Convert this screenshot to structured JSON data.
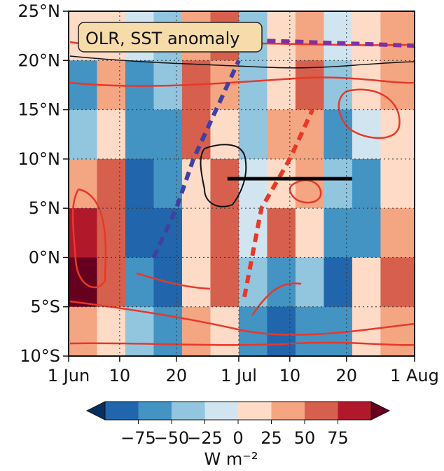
{
  "chart_data": {
    "type": "heatmap",
    "title": "",
    "annotation": "OLR, SST anomaly",
    "x_axis": {
      "tick_labels": [
        "1 Jun",
        "10",
        "20",
        "1 Jul",
        "10",
        "20",
        "1 Aug"
      ],
      "tick_values": [
        "2000-06-01",
        "2000-06-10",
        "2000-06-20",
        "2000-07-01",
        "2000-07-10",
        "2000-07-20",
        "2000-08-01"
      ],
      "range": [
        "2000-06-01",
        "2000-08-01"
      ]
    },
    "y_axis": {
      "tick_labels": [
        "25°N",
        "20°N",
        "15°N",
        "10°N",
        "5°N",
        "0°N",
        "5°S",
        "10°S"
      ],
      "tick_values": [
        25,
        20,
        15,
        10,
        5,
        0,
        -5,
        -10
      ],
      "range": [
        -10,
        25
      ]
    },
    "grid": true,
    "colorbar": {
      "label": "W m⁻²",
      "tick_labels": [
        "−75",
        "−50",
        "−25",
        "0",
        "25",
        "50",
        "75"
      ],
      "levels": [
        -75,
        -50,
        -25,
        0,
        25,
        50,
        75
      ],
      "colors": [
        "#053061",
        "#2166ac",
        "#4393c3",
        "#92c5de",
        "#d1e5f0",
        "#fddbc7",
        "#f4a582",
        "#d6604d",
        "#b2182b",
        "#67001f"
      ]
    },
    "cells": {
      "x_edges": [
        "2000-06-01",
        "2000-06-06",
        "2000-06-11",
        "2000-06-16",
        "2000-06-21",
        "2000-06-26",
        "2000-07-01",
        "2000-07-06",
        "2000-07-11",
        "2000-07-16",
        "2000-07-21",
        "2000-07-26",
        "2000-08-01"
      ],
      "y_edges": [
        25,
        20,
        15,
        10,
        5,
        0,
        -5,
        -10
      ],
      "values": [
        [
          10,
          5,
          -10,
          -20,
          20,
          30,
          -15,
          10,
          20,
          -10,
          10,
          15
        ],
        [
          -30,
          20,
          -40,
          -20,
          45,
          20,
          -20,
          10,
          30,
          -20,
          10,
          20
        ],
        [
          -20,
          10,
          -50,
          -40,
          30,
          10,
          -25,
          20,
          15,
          -30,
          -10,
          10
        ],
        [
          20,
          30,
          -55,
          -50,
          5,
          30,
          -10,
          10,
          20,
          -20,
          -40,
          10
        ],
        [
          60,
          40,
          -60,
          -70,
          10,
          30,
          -5,
          30,
          10,
          -40,
          -30,
          20
        ],
        [
          90,
          30,
          -40,
          -60,
          10,
          40,
          -20,
          -40,
          -20,
          -60,
          10,
          40
        ],
        [
          20,
          10,
          -20,
          -30,
          15,
          10,
          -50,
          -60,
          -40,
          -40,
          10,
          20
        ]
      ]
    },
    "overlays": [
      {
        "kind": "OLR composite track",
        "color": "#4040a0",
        "style": "dashed",
        "points": [
          [
            "2000-06-16",
            0
          ],
          [
            "2000-06-20",
            5
          ],
          [
            "2000-06-23",
            10
          ],
          [
            "2000-06-27",
            15
          ],
          [
            "2000-07-01",
            20
          ]
        ]
      },
      {
        "kind": "SST anomaly track",
        "color": "#e83828",
        "style": "dashed",
        "points": [
          [
            "2000-07-02",
            -4
          ],
          [
            "2000-07-05",
            5
          ],
          [
            "2000-07-10",
            10
          ],
          [
            "2000-07-14",
            15
          ]
        ]
      },
      {
        "kind": "reference segment",
        "color": "#000000",
        "style": "solid",
        "points": [
          [
            "2000-06-29",
            8
          ],
          [
            "2000-07-21",
            8
          ]
        ]
      },
      {
        "kind": "upper boundary",
        "color": "#8030a0",
        "style": "dashed",
        "points": [
          [
            "2000-07-06",
            22
          ],
          [
            "2000-08-01",
            21.5
          ]
        ]
      }
    ]
  }
}
